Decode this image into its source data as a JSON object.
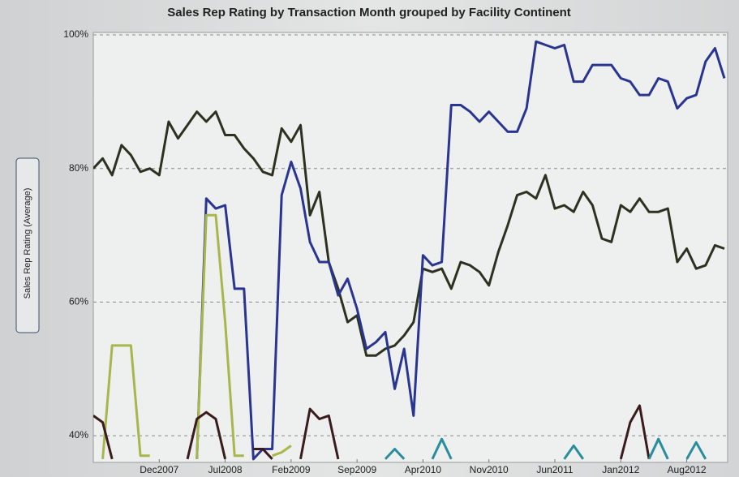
{
  "chart_data": {
    "type": "line",
    "title": "Sales Rep Rating by Transaction Month grouped by Facility Continent",
    "y_label": "Sales Rep Rating (Average)",
    "categories": [
      null,
      null,
      null,
      null,
      null,
      null,
      null,
      "Dec2007",
      null,
      null,
      null,
      null,
      null,
      null,
      "Jul2008",
      null,
      null,
      null,
      null,
      null,
      null,
      "Feb2009",
      null,
      null,
      null,
      null,
      null,
      null,
      "Sep2009",
      null,
      null,
      null,
      null,
      null,
      null,
      "Apr2010",
      null,
      null,
      null,
      null,
      null,
      null,
      "Nov2010",
      null,
      null,
      null,
      null,
      null,
      null,
      "Jun2011",
      null,
      null,
      null,
      null,
      null,
      null,
      "Jan2012",
      null,
      null,
      null,
      null,
      null,
      null,
      "Aug2012",
      null,
      null,
      null,
      null
    ],
    "ylim": [
      36,
      100
    ],
    "yticks": [
      {
        "value": 40,
        "label": "40%"
      },
      {
        "value": 60,
        "label": "60%"
      },
      {
        "value": 80,
        "label": "80%"
      },
      {
        "value": 100,
        "label": "100%"
      }
    ],
    "grid": true,
    "series": [
      {
        "color": "#2b3320",
        "values": [
          80,
          81.5,
          79,
          83.5,
          82,
          79.5,
          80,
          79,
          87,
          84.5,
          86.5,
          88.5,
          87,
          88.5,
          85,
          85,
          83,
          81.5,
          79.5,
          79,
          86,
          84,
          86.5,
          73,
          76.5,
          66,
          62,
          57,
          58,
          52,
          52,
          53,
          53.5,
          55,
          57,
          65,
          64.5,
          65,
          62,
          66,
          65.5,
          64.5,
          62.5,
          67.5,
          71.5,
          76,
          76.5,
          75.5,
          79,
          74,
          74.5,
          73.5,
          76.5,
          74.5,
          69.5,
          69,
          74.5,
          73.5,
          75.5,
          73.5,
          73.5,
          74,
          66,
          68,
          65,
          65.5,
          68.5,
          68
        ]
      },
      {
        "color": "#2a3590",
        "values": [
          null,
          null,
          null,
          null,
          null,
          null,
          null,
          null,
          null,
          null,
          null,
          36.5,
          75.5,
          74,
          74.5,
          62,
          62,
          36.5,
          38,
          38,
          76,
          81,
          77,
          69,
          66,
          66,
          61,
          63.5,
          59,
          53,
          54,
          55.5,
          47,
          53,
          43,
          67,
          65.5,
          66,
          89.5,
          89.5,
          88.5,
          87,
          88.5,
          87,
          85.5,
          85.5,
          89,
          99,
          98.5,
          98,
          98.5,
          93,
          93,
          95.5,
          95.5,
          95.5,
          93.5,
          93,
          91,
          91,
          93.5,
          93,
          89,
          90.5,
          91,
          96,
          98,
          93.5
        ]
      },
      {
        "color": "#a9b64c",
        "values": [
          null,
          36.5,
          53.5,
          53.5,
          53.5,
          37,
          37,
          null,
          null,
          null,
          null,
          36.5,
          73,
          73,
          57,
          37,
          37,
          null,
          null,
          37,
          37.5,
          38.5,
          null,
          null,
          null,
          null,
          null,
          null,
          null,
          null,
          null,
          null,
          null,
          null,
          null,
          null,
          null,
          null,
          null,
          null,
          null,
          null,
          null,
          null,
          null,
          null,
          null,
          null,
          null,
          null,
          null,
          null,
          null,
          null,
          null,
          null,
          null,
          null,
          null,
          null,
          null,
          null,
          null,
          null,
          null,
          null,
          null,
          null
        ]
      },
      {
        "color": "#3a1c1c",
        "values": [
          43,
          42,
          36.5,
          null,
          null,
          null,
          null,
          null,
          null,
          null,
          36.5,
          42.5,
          43.5,
          42.5,
          36.5,
          null,
          null,
          38,
          38,
          36.5,
          null,
          null,
          36.5,
          44,
          42.5,
          43,
          36.5,
          null,
          null,
          null,
          null,
          null,
          null,
          null,
          null,
          null,
          null,
          null,
          null,
          null,
          null,
          null,
          null,
          null,
          null,
          null,
          null,
          null,
          null,
          null,
          null,
          null,
          null,
          null,
          null,
          null,
          36.5,
          42,
          44.5,
          36.5,
          null,
          null,
          null,
          null,
          null,
          null,
          null,
          null
        ]
      },
      {
        "color": "#2a8d9c",
        "values": [
          null,
          null,
          null,
          null,
          null,
          null,
          null,
          null,
          null,
          null,
          null,
          null,
          null,
          null,
          null,
          null,
          null,
          null,
          null,
          null,
          null,
          null,
          null,
          null,
          null,
          null,
          null,
          null,
          null,
          null,
          null,
          36.5,
          38,
          36.5,
          null,
          null,
          36.5,
          39.5,
          36.5,
          null,
          null,
          null,
          null,
          null,
          null,
          null,
          null,
          null,
          null,
          null,
          36.5,
          38.5,
          36.5,
          null,
          null,
          null,
          null,
          null,
          null,
          36.5,
          39.5,
          36.5,
          null,
          36.5,
          39,
          36.5,
          null,
          null
        ]
      }
    ]
  }
}
